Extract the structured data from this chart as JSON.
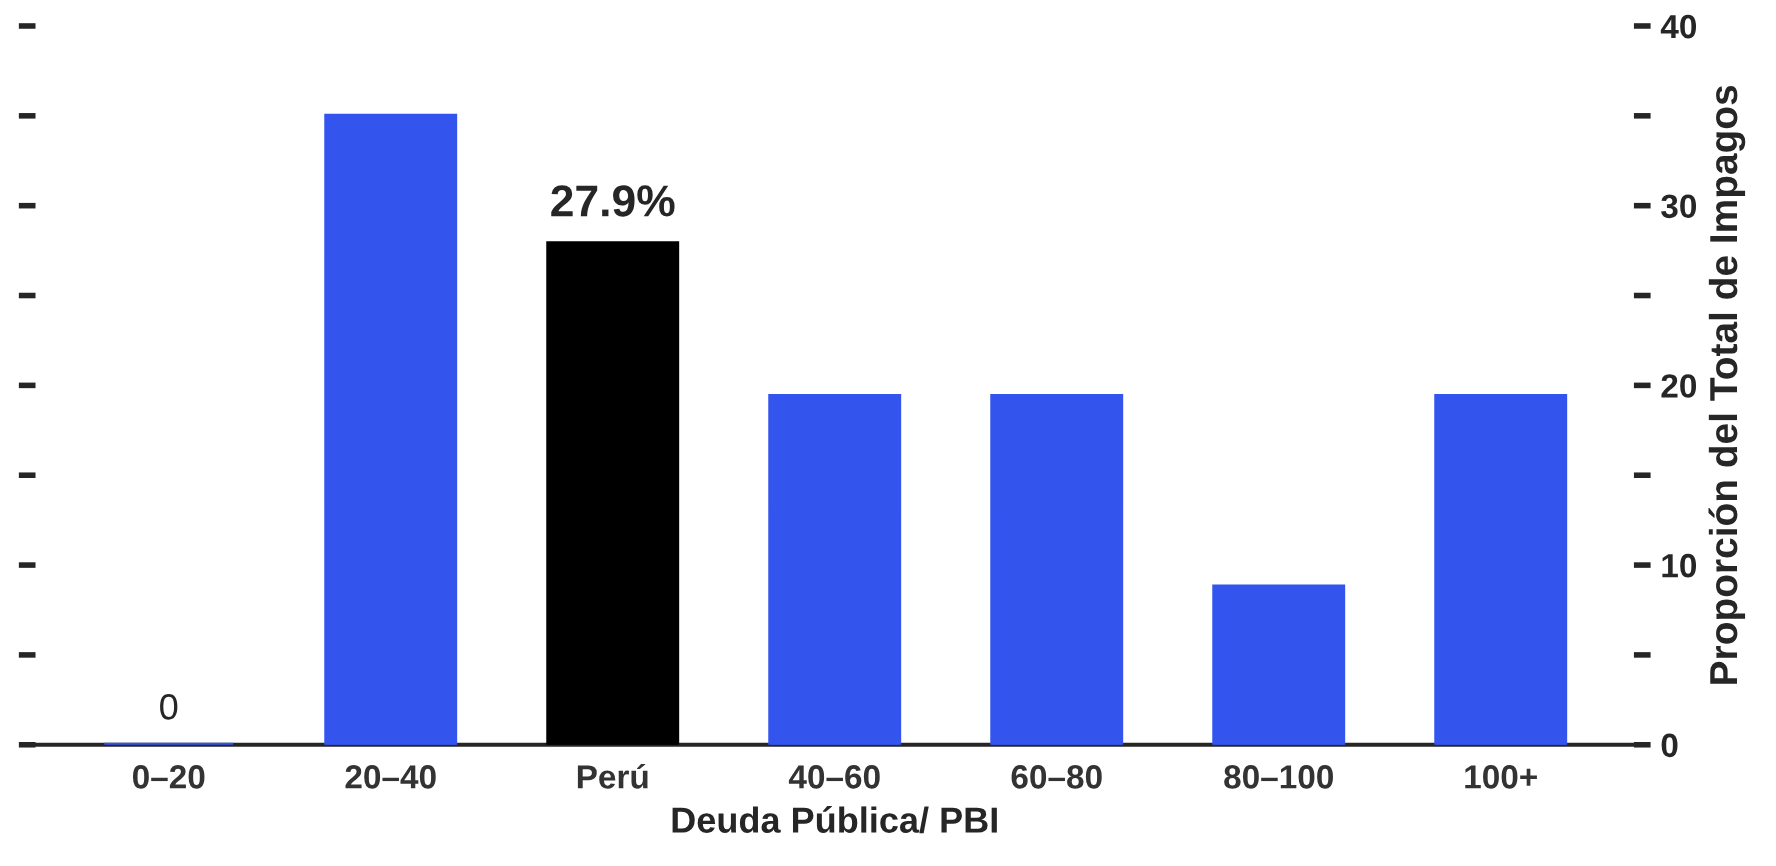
{
  "chart_data": {
    "type": "bar",
    "xlabel": "Deuda Pública/ PBI",
    "ylabel": "Proporción del Total de Impagos",
    "categories": [
      "0–20",
      "20–40",
      "Perú",
      "40–60",
      "60–80",
      "80–100",
      "100+"
    ],
    "values": [
      0,
      35,
      27.9,
      19.4,
      19.4,
      8.8,
      19.4
    ],
    "colors": [
      "#3355ee",
      "#3355ee",
      "#000000",
      "#3355ee",
      "#3355ee",
      "#3355ee",
      "#3355ee"
    ],
    "value_labels": [
      "0",
      null,
      "27.9%",
      null,
      null,
      null,
      null
    ],
    "ylim": [
      0,
      40
    ],
    "yticks": [
      0,
      {
        "value": 5,
        "label": null
      },
      10,
      {
        "value": 15,
        "label": null
      },
      20,
      {
        "value": 25,
        "label": null
      },
      30,
      {
        "value": 35,
        "label": null
      },
      40
    ],
    "grid": false,
    "legend": false
  }
}
